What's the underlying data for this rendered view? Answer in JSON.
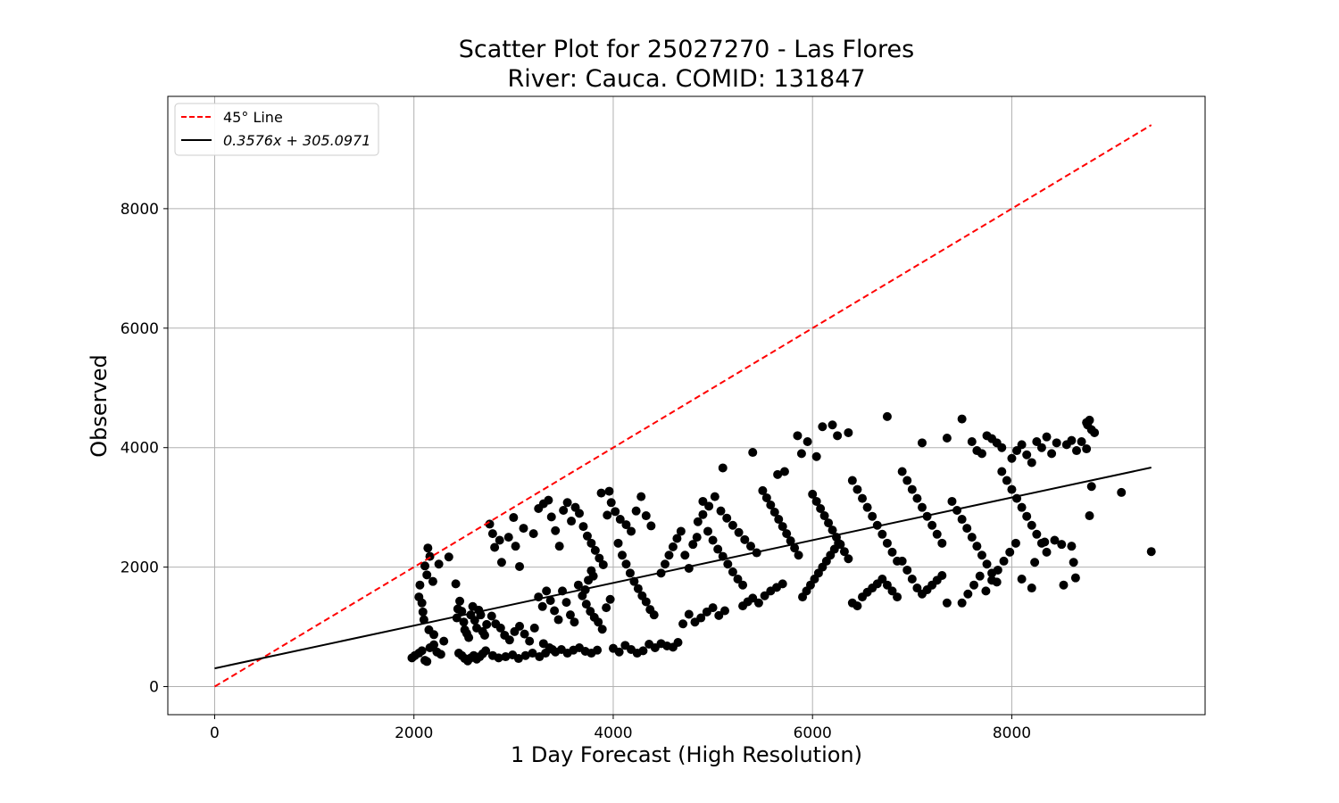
{
  "chart_data": {
    "type": "scatter",
    "title_line1": "Scatter Plot for 25027270 - Las Flores",
    "title_line2": "River: Cauca. COMID: 131847",
    "xlabel": "1 Day Forecast (High Resolution)",
    "ylabel": "Observed",
    "xlim": [
      -470,
      9940
    ],
    "ylim": [
      -470,
      9880
    ],
    "xticks": [
      0,
      2000,
      4000,
      6000,
      8000
    ],
    "yticks": [
      0,
      2000,
      4000,
      6000,
      8000
    ],
    "grid": true,
    "legend_position": "top-left",
    "legend": {
      "line45_label": "45° Line",
      "fit_label": "0.3576x + 305.0971"
    },
    "colors": {
      "line45": "#ff0000",
      "fit": "#000000",
      "points": "#000000",
      "grid": "#b0b0b0"
    },
    "line45": {
      "x": [
        0,
        9400
      ],
      "y": [
        0,
        9400
      ]
    },
    "fit_line": {
      "slope": 0.3576,
      "intercept": 305.0971,
      "x": [
        0,
        9400
      ]
    },
    "points": [
      [
        1980,
        480
      ],
      [
        2010,
        520
      ],
      [
        2050,
        560
      ],
      [
        2080,
        600
      ],
      [
        2110,
        440
      ],
      [
        2130,
        420
      ],
      [
        2160,
        650
      ],
      [
        2200,
        700
      ],
      [
        2230,
        580
      ],
      [
        2270,
        540
      ],
      [
        2050,
        1500
      ],
      [
        2060,
        1700
      ],
      [
        2080,
        1400
      ],
      [
        2090,
        1250
      ],
      [
        2100,
        1120
      ],
      [
        2110,
        2020
      ],
      [
        2130,
        1870
      ],
      [
        2140,
        2320
      ],
      [
        2160,
        2180
      ],
      [
        2190,
        1760
      ],
      [
        2250,
        2050
      ],
      [
        2350,
        2170
      ],
      [
        2420,
        1720
      ],
      [
        2430,
        1150
      ],
      [
        2440,
        1300
      ],
      [
        2460,
        1430
      ],
      [
        2480,
        1260
      ],
      [
        2500,
        1080
      ],
      [
        2510,
        950
      ],
      [
        2530,
        890
      ],
      [
        2550,
        820
      ],
      [
        2570,
        1200
      ],
      [
        2590,
        1340
      ],
      [
        2610,
        1110
      ],
      [
        2630,
        980
      ],
      [
        2650,
        1280
      ],
      [
        2670,
        1200
      ],
      [
        2690,
        920
      ],
      [
        2710,
        860
      ],
      [
        2730,
        1040
      ],
      [
        2450,
        560
      ],
      [
        2480,
        520
      ],
      [
        2510,
        470
      ],
      [
        2540,
        430
      ],
      [
        2570,
        480
      ],
      [
        2600,
        520
      ],
      [
        2630,
        460
      ],
      [
        2660,
        500
      ],
      [
        2690,
        550
      ],
      [
        2720,
        600
      ],
      [
        2760,
        2720
      ],
      [
        2790,
        2560
      ],
      [
        2810,
        2330
      ],
      [
        2860,
        2450
      ],
      [
        2880,
        2080
      ],
      [
        2950,
        2500
      ],
      [
        3000,
        2830
      ],
      [
        3020,
        2350
      ],
      [
        3060,
        2010
      ],
      [
        3100,
        2650
      ],
      [
        2780,
        1180
      ],
      [
        2820,
        1050
      ],
      [
        2870,
        980
      ],
      [
        2910,
        860
      ],
      [
        2960,
        780
      ],
      [
        3010,
        920
      ],
      [
        3060,
        1010
      ],
      [
        3110,
        880
      ],
      [
        3160,
        760
      ],
      [
        3210,
        980
      ],
      [
        2790,
        520
      ],
      [
        2850,
        480
      ],
      [
        2920,
        500
      ],
      [
        2990,
        530
      ],
      [
        3050,
        470
      ],
      [
        3120,
        520
      ],
      [
        3190,
        560
      ],
      [
        3260,
        500
      ],
      [
        3320,
        560
      ],
      [
        3390,
        620
      ],
      [
        3200,
        2560
      ],
      [
        3250,
        2980
      ],
      [
        3300,
        3060
      ],
      [
        3350,
        3120
      ],
      [
        3380,
        2840
      ],
      [
        3420,
        2610
      ],
      [
        3460,
        2350
      ],
      [
        3500,
        2950
      ],
      [
        3540,
        3080
      ],
      [
        3580,
        2770
      ],
      [
        3250,
        1500
      ],
      [
        3290,
        1340
      ],
      [
        3330,
        1600
      ],
      [
        3370,
        1440
      ],
      [
        3410,
        1270
      ],
      [
        3450,
        1120
      ],
      [
        3490,
        1600
      ],
      [
        3530,
        1410
      ],
      [
        3570,
        1200
      ],
      [
        3610,
        1080
      ],
      [
        3300,
        720
      ],
      [
        3360,
        650
      ],
      [
        3420,
        580
      ],
      [
        3480,
        620
      ],
      [
        3540,
        560
      ],
      [
        3600,
        610
      ],
      [
        3660,
        650
      ],
      [
        3720,
        590
      ],
      [
        3780,
        560
      ],
      [
        3840,
        610
      ],
      [
        3620,
        3000
      ],
      [
        3660,
        2900
      ],
      [
        3700,
        2680
      ],
      [
        3740,
        2520
      ],
      [
        3780,
        2400
      ],
      [
        3820,
        2280
      ],
      [
        3860,
        2150
      ],
      [
        3900,
        2040
      ],
      [
        3940,
        2870
      ],
      [
        3980,
        3080
      ],
      [
        3650,
        1700
      ],
      [
        3690,
        1520
      ],
      [
        3730,
        1380
      ],
      [
        3770,
        1260
      ],
      [
        3810,
        1160
      ],
      [
        3850,
        1080
      ],
      [
        3890,
        960
      ],
      [
        3930,
        1320
      ],
      [
        3970,
        1460
      ],
      [
        3720,
        1620
      ],
      [
        3880,
        3240
      ],
      [
        3960,
        3270
      ],
      [
        4020,
        2930
      ],
      [
        4070,
        2800
      ],
      [
        4130,
        2710
      ],
      [
        4180,
        2600
      ],
      [
        4230,
        2940
      ],
      [
        4280,
        3180
      ],
      [
        4330,
        2860
      ],
      [
        4380,
        2690
      ],
      [
        4050,
        2400
      ],
      [
        4090,
        2200
      ],
      [
        4130,
        2050
      ],
      [
        4170,
        1900
      ],
      [
        4210,
        1760
      ],
      [
        4250,
        1640
      ],
      [
        4290,
        1520
      ],
      [
        4330,
        1420
      ],
      [
        4370,
        1290
      ],
      [
        4410,
        1200
      ],
      [
        4000,
        640
      ],
      [
        4060,
        580
      ],
      [
        4120,
        690
      ],
      [
        4180,
        620
      ],
      [
        4240,
        560
      ],
      [
        4300,
        600
      ],
      [
        4360,
        710
      ],
      [
        4420,
        650
      ],
      [
        4480,
        720
      ],
      [
        4540,
        680
      ],
      [
        4480,
        1900
      ],
      [
        4520,
        2050
      ],
      [
        4560,
        2200
      ],
      [
        4600,
        2340
      ],
      [
        4640,
        2480
      ],
      [
        4680,
        2600
      ],
      [
        4720,
        2200
      ],
      [
        4760,
        1980
      ],
      [
        4800,
        2380
      ],
      [
        4840,
        2500
      ],
      [
        4600,
        660
      ],
      [
        4650,
        740
      ],
      [
        4700,
        1050
      ],
      [
        4760,
        1210
      ],
      [
        4820,
        1080
      ],
      [
        4880,
        1150
      ],
      [
        4940,
        1250
      ],
      [
        5000,
        1320
      ],
      [
        5060,
        1190
      ],
      [
        5120,
        1270
      ],
      [
        4850,
        2760
      ],
      [
        4900,
        2880
      ],
      [
        4950,
        2600
      ],
      [
        5000,
        2450
      ],
      [
        5050,
        2300
      ],
      [
        5100,
        2180
      ],
      [
        5150,
        2050
      ],
      [
        5200,
        1920
      ],
      [
        5250,
        1800
      ],
      [
        5300,
        1700
      ],
      [
        4900,
        3100
      ],
      [
        4960,
        3020
      ],
      [
        5020,
        3180
      ],
      [
        5080,
        2940
      ],
      [
        5140,
        2820
      ],
      [
        5200,
        2700
      ],
      [
        5260,
        2580
      ],
      [
        5320,
        2460
      ],
      [
        5380,
        2350
      ],
      [
        5440,
        2240
      ],
      [
        5100,
        3660
      ],
      [
        5400,
        3920
      ],
      [
        5300,
        1350
      ],
      [
        5350,
        1420
      ],
      [
        5400,
        1480
      ],
      [
        5460,
        1400
      ],
      [
        5520,
        1520
      ],
      [
        5580,
        1600
      ],
      [
        5640,
        1660
      ],
      [
        5700,
        1720
      ],
      [
        5500,
        3280
      ],
      [
        5540,
        3160
      ],
      [
        5580,
        3040
      ],
      [
        5620,
        2920
      ],
      [
        5660,
        2800
      ],
      [
        5700,
        2680
      ],
      [
        5740,
        2560
      ],
      [
        5780,
        2440
      ],
      [
        5820,
        2320
      ],
      [
        5860,
        2200
      ],
      [
        5650,
        3550
      ],
      [
        5720,
        3600
      ],
      [
        5850,
        4200
      ],
      [
        5890,
        3900
      ],
      [
        5950,
        4100
      ],
      [
        6040,
        3850
      ],
      [
        6100,
        4350
      ],
      [
        6200,
        4380
      ],
      [
        6250,
        4200
      ],
      [
        6360,
        4250
      ],
      [
        5900,
        1500
      ],
      [
        5940,
        1600
      ],
      [
        5980,
        1700
      ],
      [
        6020,
        1800
      ],
      [
        6060,
        1900
      ],
      [
        6100,
        2000
      ],
      [
        6140,
        2100
      ],
      [
        6180,
        2200
      ],
      [
        6220,
        2300
      ],
      [
        6260,
        2400
      ],
      [
        6000,
        3220
      ],
      [
        6040,
        3100
      ],
      [
        6080,
        2980
      ],
      [
        6120,
        2860
      ],
      [
        6160,
        2740
      ],
      [
        6200,
        2620
      ],
      [
        6240,
        2500
      ],
      [
        6280,
        2380
      ],
      [
        6320,
        2260
      ],
      [
        6360,
        2140
      ],
      [
        6400,
        1400
      ],
      [
        6450,
        1350
      ],
      [
        6500,
        1500
      ],
      [
        6550,
        1580
      ],
      [
        6600,
        1650
      ],
      [
        6650,
        1720
      ],
      [
        6700,
        1800
      ],
      [
        6750,
        1700
      ],
      [
        6800,
        1600
      ],
      [
        6850,
        1500
      ],
      [
        6400,
        3450
      ],
      [
        6450,
        3300
      ],
      [
        6500,
        3150
      ],
      [
        6550,
        3000
      ],
      [
        6600,
        2850
      ],
      [
        6650,
        2700
      ],
      [
        6700,
        2550
      ],
      [
        6750,
        2400
      ],
      [
        6800,
        2250
      ],
      [
        6850,
        2100
      ],
      [
        6750,
        4520
      ],
      [
        6900,
        3600
      ],
      [
        6950,
        3450
      ],
      [
        7000,
        3300
      ],
      [
        7050,
        3150
      ],
      [
        7100,
        3000
      ],
      [
        7150,
        2850
      ],
      [
        7200,
        2700
      ],
      [
        7250,
        2550
      ],
      [
        7300,
        2400
      ],
      [
        6900,
        2100
      ],
      [
        6950,
        1950
      ],
      [
        7000,
        1800
      ],
      [
        7050,
        1650
      ],
      [
        7100,
        1550
      ],
      [
        7150,
        1620
      ],
      [
        7200,
        1700
      ],
      [
        7250,
        1780
      ],
      [
        7300,
        1860
      ],
      [
        7350,
        1400
      ],
      [
        7100,
        4080
      ],
      [
        7350,
        4160
      ],
      [
        7500,
        4480
      ],
      [
        7600,
        4100
      ],
      [
        7650,
        3950
      ],
      [
        7700,
        3900
      ],
      [
        7750,
        4200
      ],
      [
        7800,
        4150
      ],
      [
        7850,
        4080
      ],
      [
        7900,
        4000
      ],
      [
        7400,
        3100
      ],
      [
        7450,
        2950
      ],
      [
        7500,
        2800
      ],
      [
        7550,
        2650
      ],
      [
        7600,
        2500
      ],
      [
        7650,
        2350
      ],
      [
        7700,
        2200
      ],
      [
        7750,
        2050
      ],
      [
        7800,
        1900
      ],
      [
        7850,
        1750
      ],
      [
        7500,
        1400
      ],
      [
        7560,
        1550
      ],
      [
        7620,
        1700
      ],
      [
        7680,
        1850
      ],
      [
        7740,
        1600
      ],
      [
        7800,
        1780
      ],
      [
        7860,
        1950
      ],
      [
        7920,
        2100
      ],
      [
        7980,
        2250
      ],
      [
        8040,
        2400
      ],
      [
        7900,
        3600
      ],
      [
        7950,
        3450
      ],
      [
        8000,
        3300
      ],
      [
        8050,
        3150
      ],
      [
        8100,
        3000
      ],
      [
        8150,
        2850
      ],
      [
        8200,
        2700
      ],
      [
        8250,
        2550
      ],
      [
        8300,
        2400
      ],
      [
        8350,
        2250
      ],
      [
        8000,
        3820
      ],
      [
        8050,
        3950
      ],
      [
        8100,
        4050
      ],
      [
        8150,
        3880
      ],
      [
        8200,
        3750
      ],
      [
        8250,
        4100
      ],
      [
        8300,
        4000
      ],
      [
        8350,
        4180
      ],
      [
        8400,
        3900
      ],
      [
        8450,
        4080
      ],
      [
        8100,
        1800
      ],
      [
        8200,
        1650
      ],
      [
        8230,
        2080
      ],
      [
        8330,
        2420
      ],
      [
        8430,
        2450
      ],
      [
        8500,
        2380
      ],
      [
        8520,
        1700
      ],
      [
        8600,
        2350
      ],
      [
        8620,
        2080
      ],
      [
        8640,
        1820
      ],
      [
        8550,
        4050
      ],
      [
        8600,
        4120
      ],
      [
        8650,
        3950
      ],
      [
        8700,
        4100
      ],
      [
        8750,
        3980
      ],
      [
        8760,
        4380
      ],
      [
        8780,
        4460
      ],
      [
        8800,
        4300
      ],
      [
        8830,
        4250
      ],
      [
        8780,
        2860
      ],
      [
        8800,
        3350
      ],
      [
        9100,
        3250
      ],
      [
        9400,
        2260
      ],
      [
        8750,
        4420
      ],
      [
        3750,
        1780
      ],
      [
        3780,
        1940
      ],
      [
        3800,
        1850
      ],
      [
        2150,
        950
      ],
      [
        2200,
        870
      ],
      [
        2300,
        760
      ]
    ]
  }
}
